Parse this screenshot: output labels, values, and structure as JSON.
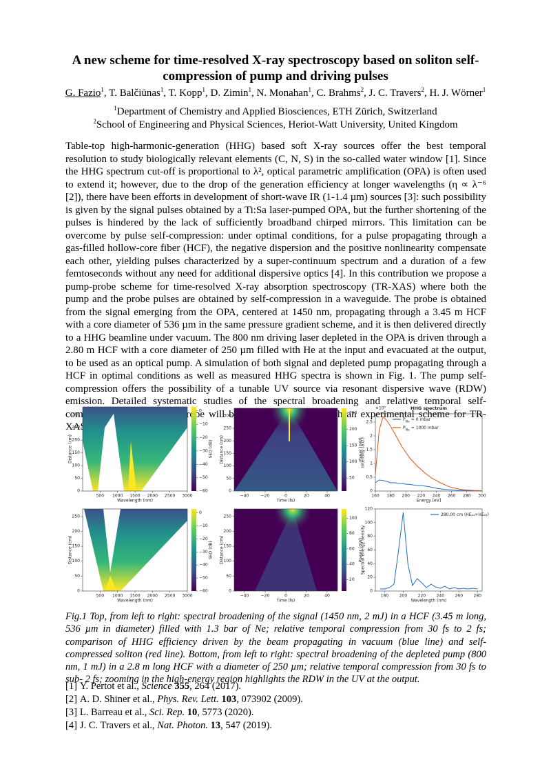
{
  "header": {
    "title": "A new scheme for time-resolved X-ray spectroscopy based on soliton self-compression of pump and driving pulses",
    "authors": [
      {
        "name": "G. Fazio",
        "aff": "1"
      },
      {
        "name": ", T. Balčiūnas",
        "aff": "1"
      },
      {
        "name": ", T. Kopp",
        "aff": "1"
      },
      {
        "name": ", D. Zimin",
        "aff": "1"
      },
      {
        "name": ", N. Monahan",
        "aff": "1"
      },
      {
        "name": ", C. Brahms",
        "aff": "2"
      },
      {
        "name": ", J. C. Travers",
        "aff": "2"
      },
      {
        "name": ", H. J. Wörner",
        "aff": "1"
      }
    ],
    "affiliations": [
      {
        "mark": "1",
        "text": "Department of Chemistry and Applied Biosciences, ETH Zürich, Switzerland"
      },
      {
        "mark": "2",
        "text": "School of Engineering and Physical Sciences, Heriot-Watt University, United Kingdom"
      }
    ]
  },
  "abstract": "Table-top high-harmonic-generation (HHG) based soft X-ray sources offer the best temporal resolution to study biologically relevant elements (C, N, S) in the so-called water window [1]. Since the HHG spectrum cut-off is proportional to λ², optical parametric amplification (OPA) is often used to extend it; however, due to the drop of the generation efficiency at longer wavelengths (η ∝ λ⁻⁶ [2]), there have been efforts in development of short-wave IR (1-1.4 µm) sources [3]: such possibility is given by the signal pulses obtained by a Ti:Sa laser-pumped OPA, but the further shortening of the pulses is hindered by the lack of sufficiently broadband chirped mirrors. This limitation can be overcome by pulse self-compression: under optimal conditions, for a pulse propagating through a gas-filled hollow-core fiber (HCF), the negative dispersion and the positive nonlinearity compensate each other, yielding pulses characterized by a super-continuum spectrum and a duration of a few femtoseconds without any need for additional dispersive optics [4]. In this contribution we propose a pump-probe scheme for time-resolved X-ray absorption spectroscopy (TR-XAS) where both the pump and the probe pulses are obtained by self-compression in a waveguide. The probe is obtained from the signal emerging from the OPA, centered at 1450 nm, propagating through a 3.45 m HCF with a core diameter of 536 µm in the same pressure gradient scheme, and it is then delivered directly to a HHG beamline under vacuum. The 800 nm driving laser depleted in the OPA is driven through a 2.80 m HCF with a core diameter of 250 µm filled with He at the input and evacuated at the output, to be used as an optical pump.  A simulation of both signal and depleted pump propagating through a HCF in optimal conditions as well as measured HHG spectra is shown in Fig. 1. The pump self-compression offers the possibility of a tunable UV source via resonant dispersive wave (RDW) emission. Detailed systematic studies of the spectral broadening and relative temporal self-compression of pump and probe will be presented together with an experimental scheme for TR-XAS.",
  "figure": {
    "panels": [
      {
        "kind": "heatmap",
        "xlabel": "Wavelength (nm)",
        "ylabel": "Distance (cm)",
        "xlim": [
          0,
          3000
        ],
        "ylim": [
          0,
          330
        ],
        "xticks": [
          500,
          1000,
          1500,
          2000,
          2500,
          3000
        ],
        "yticks": [
          0,
          50,
          100,
          150,
          200,
          250,
          300
        ],
        "cbar_label": "SED (dB)",
        "clim": [
          -60,
          3
        ],
        "cticks": [
          0,
          {
            "value": -10,
            "label": "−10"
          },
          {
            "value": -20,
            "label": "−20"
          },
          {
            "value": -30,
            "label": "−30"
          },
          {
            "value": -40,
            "label": "−40"
          },
          {
            "value": -50,
            "label": "−50"
          },
          {
            "value": -60,
            "label": "−60"
          }
        ]
      },
      {
        "kind": "heatmap",
        "xlabel": "Time (fs)",
        "ylabel": "Distance (cm)",
        "xlim": [
          -50,
          50
        ],
        "ylim": [
          0,
          330
        ],
        "xticks": [
          {
            "value": -40,
            "label": "−40"
          },
          {
            "value": -20,
            "label": "−20"
          },
          0,
          20,
          40
        ],
        "yticks": [
          0,
          50,
          100,
          150,
          200,
          250,
          300
        ],
        "cbar_label": "Power (GW)",
        "clim": [
          10,
          265
        ],
        "cticks": [
          50,
          100,
          150,
          200,
          250
        ]
      },
      {
        "kind": "line",
        "title": "HHG spectrum",
        "xlabel": "Energy [eV]",
        "ylabel": "Intensity (a.u.)",
        "y_offset_text": "×10⁵",
        "xlim": [
          160,
          300
        ],
        "ylim": [
          0,
          2.8
        ],
        "xticks": [
          160,
          180,
          200,
          220,
          240,
          260,
          280,
          300
        ],
        "yticks": [
          0,
          0.5,
          1,
          1.5,
          2,
          2.5
        ],
        "x": [
          160,
          165,
          170,
          175,
          180,
          185,
          190,
          195,
          200,
          205,
          210,
          215,
          220,
          225,
          230,
          235,
          240,
          245,
          250,
          255,
          260,
          265,
          270,
          275,
          280,
          285,
          290,
          295,
          300
        ],
        "series": [
          {
            "name": "P",
            "name_subscript": "Ne",
            "name_rest": "= 0 mbar",
            "color": "#1f6fc0",
            "values": [
              0.3,
              0.4,
              0.38,
              0.35,
              0.3,
              0.3,
              0.28,
              0.27,
              0.25,
              0.24,
              0.22,
              0.2,
              0.2,
              0.18,
              0.16,
              0.13,
              0.1,
              0.08,
              0.06,
              0.05,
              0.04,
              0.03,
              0.02,
              0.02,
              0.01,
              0.01,
              0.01,
              0.01,
              0
            ]
          },
          {
            "name": "P",
            "name_subscript": "Ne",
            "name_rest": "= 1000 mbar",
            "color": "#d95319",
            "values": [
              0.6,
              2.2,
              2.7,
              2.55,
              2.35,
              2.1,
              1.85,
              1.6,
              1.4,
              1.2,
              1.05,
              0.9,
              0.78,
              0.65,
              0.55,
              0.45,
              0.38,
              0.3,
              0.24,
              0.18,
              0.13,
              0.1,
              0.07,
              0.05,
              0.04,
              0.03,
              0.02,
              0.02,
              0.01
            ]
          }
        ]
      },
      {
        "kind": "heatmap",
        "xlabel": "Wavelength (nm)",
        "ylabel": "Distance (cm)",
        "xlim": [
          0,
          3000
        ],
        "ylim": [
          0,
          275
        ],
        "xticks": [
          500,
          1000,
          1500,
          2000,
          2500,
          3000
        ],
        "yticks": [
          0,
          50,
          100,
          150,
          200,
          250
        ],
        "cbar_label": "SED (dB)",
        "clim": [
          -60,
          3
        ],
        "cticks": [
          0,
          {
            "value": -10,
            "label": "−10"
          },
          {
            "value": -20,
            "label": "−20"
          },
          {
            "value": -30,
            "label": "−30"
          },
          {
            "value": -40,
            "label": "−40"
          },
          {
            "value": -50,
            "label": "−50"
          },
          {
            "value": -60,
            "label": "−60"
          }
        ]
      },
      {
        "kind": "heatmap",
        "xlabel": "Time (fs)",
        "ylabel": "Distance (cm)",
        "xlim": [
          -50,
          50
        ],
        "ylim": [
          0,
          275
        ],
        "xticks": [
          {
            "value": -40,
            "label": "−40"
          },
          {
            "value": -20,
            "label": "−20"
          },
          0,
          20,
          40
        ],
        "yticks": [
          0,
          50,
          100,
          150,
          200,
          250
        ],
        "cbar_label": "Power (GW)",
        "clim": [
          5,
          112
        ],
        "cticks": [
          20,
          40,
          60,
          80,
          100
        ]
      },
      {
        "kind": "line",
        "xlabel": "Wavelength (nm)",
        "ylabel": "Spectral energy density",
        "xlim": [
          170,
          285
        ],
        "ylim": [
          0,
          120
        ],
        "xticks": [
          180,
          200,
          220,
          240,
          260,
          280
        ],
        "yticks": [
          0,
          20,
          40,
          60,
          80,
          100,
          120
        ],
        "x": [
          175,
          180,
          185,
          190,
          195,
          200,
          205,
          210,
          215,
          220,
          225,
          230,
          235,
          240,
          245,
          250,
          255,
          260,
          265,
          270,
          275,
          280
        ],
        "series": [
          {
            "name": "280.00 cm (HE₁₁+HE₁₂)",
            "color": "#1f6fc0",
            "values": [
              3,
              3,
              5,
              10,
              60,
              115,
              40,
              8,
              18,
              12,
              5,
              10,
              6,
              4,
              7,
              3,
              5,
              3,
              4,
              3,
              4,
              3
            ]
          }
        ]
      }
    ]
  },
  "caption": "Fig.1 Top, from left to right: spectral broadening of the signal (1450 nm, 2 mJ) in a HCF (3.45 m long, 536 µm in diameter) filled with 1.3 bar of Ne; relative temporal compression from 30 fs to 2 fs; comparison of HHG efficiency driven by the beam propagating in vacuum (blue line) and self-compressed soliton (red line). Bottom, from left to right: spectral broadening of the depleted pump (800 nm, 1 mJ) in a 2.8 m long HCF with a diameter of 250 µm; relative temporal compression from 30 fs to sub- 2 fs; zooming in the high-energy region highlights the RDW in the UV at the output.",
  "references": [
    {
      "label": "[1]",
      "authors": "Y. Pertot et al.,",
      "journal": "Science",
      "volume": "355",
      "rest": ", 264 (2017)."
    },
    {
      "label": "[2]",
      "authors": "A. D. Shiner et al.,",
      "journal": "Phys. Rev. Lett.",
      "volume": "103",
      "rest": ", 073902 (2009)."
    },
    {
      "label": "[3]",
      "authors": "L. Barreau et al.,",
      "journal": "Sci. Rep.",
      "volume": "10",
      "rest": ", 5773 (2020)."
    },
    {
      "label": "[4]",
      "authors": "J. C. Travers et al.,",
      "journal": "Nat. Photon.",
      "volume": "13",
      "rest": ", 547 (2019)."
    }
  ]
}
